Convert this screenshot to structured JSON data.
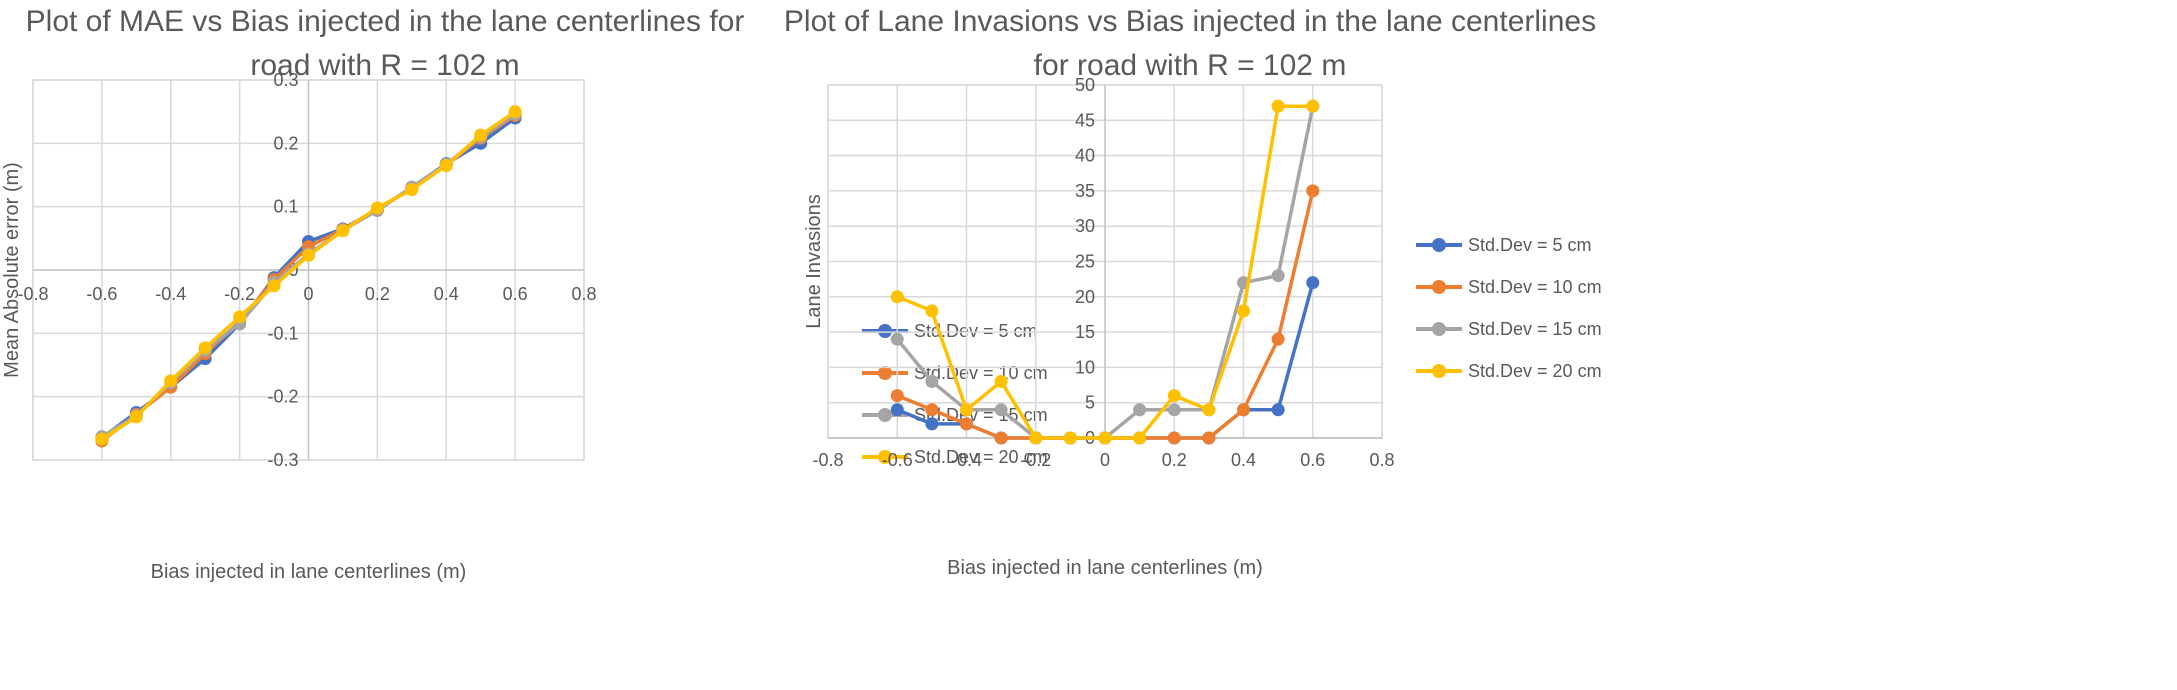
{
  "chart_data": [
    {
      "type": "scatter",
      "title": "Plot of MAE vs Bias injected in the lane centerlines for road with R = 102 m",
      "xlabel": "Bias injected in lane centerlines (m)",
      "ylabel": "Mean Absolute error (m)",
      "xlim": [
        -0.8,
        0.8
      ],
      "ylim": [
        -0.3,
        0.3
      ],
      "x_ticks": [
        "-0.8",
        "-0.6",
        "-0.4",
        "-0.2",
        "0",
        "0.2",
        "0.4",
        "0.6",
        "0.8"
      ],
      "y_ticks": [
        "0.3",
        "0.2",
        "0.1",
        "0",
        "-0.1",
        "-0.2",
        "-0.3"
      ],
      "grid": true,
      "legend": "right",
      "x": [
        -0.6,
        -0.5,
        -0.4,
        -0.3,
        -0.2,
        -0.1,
        0,
        0.1,
        0.2,
        0.3,
        0.4,
        0.5,
        0.6
      ],
      "series": [
        {
          "name": "Std.Dev = 5 cm",
          "color": "#4472C4",
          "values": [
            -0.265,
            -0.225,
            -0.185,
            -0.14,
            -0.085,
            -0.012,
            0.045,
            0.065,
            0.095,
            0.13,
            0.168,
            0.2,
            0.24
          ]
        },
        {
          "name": "Std.Dev = 10 cm",
          "color": "#ED7D31",
          "values": [
            -0.27,
            -0.228,
            -0.185,
            -0.132,
            -0.082,
            -0.015,
            0.037,
            0.064,
            0.096,
            0.129,
            0.166,
            0.208,
            0.244
          ]
        },
        {
          "name": "Std.Dev = 15 cm",
          "color": "#A5A5A5",
          "values": [
            -0.263,
            -0.23,
            -0.178,
            -0.127,
            -0.085,
            -0.02,
            0.025,
            0.063,
            0.094,
            0.131,
            0.167,
            0.21,
            0.246
          ]
        },
        {
          "name": "Std.Dev = 20 cm",
          "color": "#FFC000",
          "values": [
            -0.267,
            -0.232,
            -0.175,
            -0.123,
            -0.074,
            -0.025,
            0.023,
            0.062,
            0.098,
            0.127,
            0.165,
            0.213,
            0.25
          ]
        }
      ]
    },
    {
      "type": "scatter",
      "title": "Plot of Lane Invasions vs Bias injected in the lane centerlines for road with R = 102 m",
      "xlabel": "Bias injected in lane centerlines (m)",
      "ylabel": "Lane Invasions",
      "xlim": [
        -0.8,
        0.8
      ],
      "ylim": [
        0,
        50
      ],
      "x_ticks": [
        "-0.8",
        "-0.6",
        "-0.4",
        "-0.2",
        "0",
        "0.2",
        "0.4",
        "0.6",
        "0.8"
      ],
      "y_ticks": [
        "50",
        "45",
        "40",
        "35",
        "30",
        "25",
        "20",
        "15",
        "10",
        "5",
        "0"
      ],
      "grid": true,
      "legend": "right",
      "x": [
        -0.6,
        -0.5,
        -0.4,
        -0.3,
        -0.2,
        -0.1,
        0,
        0.1,
        0.2,
        0.3,
        0.4,
        0.5,
        0.6
      ],
      "series": [
        {
          "name": "Std.Dev = 5 cm",
          "color": "#4472C4",
          "values": [
            4,
            2,
            2,
            0,
            0,
            0,
            0,
            0,
            0,
            0,
            4,
            4,
            22
          ]
        },
        {
          "name": "Std.Dev = 10 cm",
          "color": "#ED7D31",
          "values": [
            6,
            4,
            2,
            0,
            0,
            0,
            0,
            0,
            0,
            0,
            4,
            14,
            35
          ]
        },
        {
          "name": "Std.Dev = 15 cm",
          "color": "#A5A5A5",
          "values": [
            14,
            8,
            4,
            4,
            0,
            0,
            0,
            4,
            4,
            4,
            22,
            23,
            47
          ]
        },
        {
          "name": "Std.Dev = 20 cm",
          "color": "#FFC000",
          "values": [
            20,
            18,
            4,
            8,
            0,
            0,
            0,
            0,
            6,
            4,
            18,
            47,
            47
          ]
        }
      ]
    }
  ]
}
